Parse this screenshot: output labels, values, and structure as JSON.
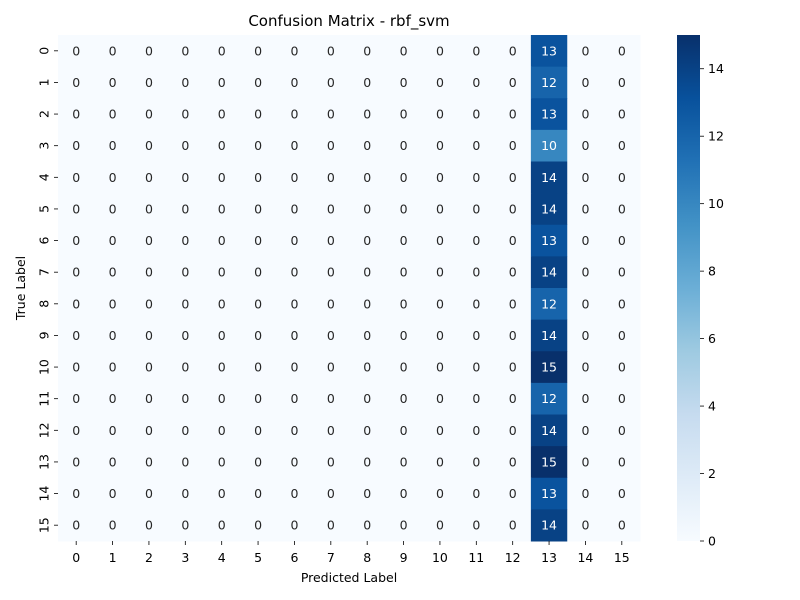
{
  "chart_data": {
    "type": "heatmap",
    "title": "Confusion Matrix - rbf_svm",
    "xlabel": "Predicted Label",
    "ylabel": "True Label",
    "x_categories": [
      "0",
      "1",
      "2",
      "3",
      "4",
      "5",
      "6",
      "7",
      "8",
      "9",
      "10",
      "11",
      "12",
      "13",
      "14",
      "15"
    ],
    "y_categories": [
      "0",
      "1",
      "2",
      "3",
      "4",
      "5",
      "6",
      "7",
      "8",
      "9",
      "10",
      "11",
      "12",
      "13",
      "14",
      "15"
    ],
    "values": [
      [
        0,
        0,
        0,
        0,
        0,
        0,
        0,
        0,
        0,
        0,
        0,
        0,
        0,
        13,
        0,
        0
      ],
      [
        0,
        0,
        0,
        0,
        0,
        0,
        0,
        0,
        0,
        0,
        0,
        0,
        0,
        12,
        0,
        0
      ],
      [
        0,
        0,
        0,
        0,
        0,
        0,
        0,
        0,
        0,
        0,
        0,
        0,
        0,
        13,
        0,
        0
      ],
      [
        0,
        0,
        0,
        0,
        0,
        0,
        0,
        0,
        0,
        0,
        0,
        0,
        0,
        10,
        0,
        0
      ],
      [
        0,
        0,
        0,
        0,
        0,
        0,
        0,
        0,
        0,
        0,
        0,
        0,
        0,
        14,
        0,
        0
      ],
      [
        0,
        0,
        0,
        0,
        0,
        0,
        0,
        0,
        0,
        0,
        0,
        0,
        0,
        14,
        0,
        0
      ],
      [
        0,
        0,
        0,
        0,
        0,
        0,
        0,
        0,
        0,
        0,
        0,
        0,
        0,
        13,
        0,
        0
      ],
      [
        0,
        0,
        0,
        0,
        0,
        0,
        0,
        0,
        0,
        0,
        0,
        0,
        0,
        14,
        0,
        0
      ],
      [
        0,
        0,
        0,
        0,
        0,
        0,
        0,
        0,
        0,
        0,
        0,
        0,
        0,
        12,
        0,
        0
      ],
      [
        0,
        0,
        0,
        0,
        0,
        0,
        0,
        0,
        0,
        0,
        0,
        0,
        0,
        14,
        0,
        0
      ],
      [
        0,
        0,
        0,
        0,
        0,
        0,
        0,
        0,
        0,
        0,
        0,
        0,
        0,
        15,
        0,
        0
      ],
      [
        0,
        0,
        0,
        0,
        0,
        0,
        0,
        0,
        0,
        0,
        0,
        0,
        0,
        12,
        0,
        0
      ],
      [
        0,
        0,
        0,
        0,
        0,
        0,
        0,
        0,
        0,
        0,
        0,
        0,
        0,
        14,
        0,
        0
      ],
      [
        0,
        0,
        0,
        0,
        0,
        0,
        0,
        0,
        0,
        0,
        0,
        0,
        0,
        15,
        0,
        0
      ],
      [
        0,
        0,
        0,
        0,
        0,
        0,
        0,
        0,
        0,
        0,
        0,
        0,
        0,
        13,
        0,
        0
      ],
      [
        0,
        0,
        0,
        0,
        0,
        0,
        0,
        0,
        0,
        0,
        0,
        0,
        0,
        14,
        0,
        0
      ]
    ],
    "colormap": "Blues",
    "vmin": 0,
    "vmax": 15,
    "colorbar": {
      "ticks": [
        0,
        2,
        4,
        6,
        8,
        10,
        12,
        14
      ]
    },
    "grid": false,
    "colors": {
      "low": "#f7fbff",
      "high": "#08306b"
    }
  }
}
